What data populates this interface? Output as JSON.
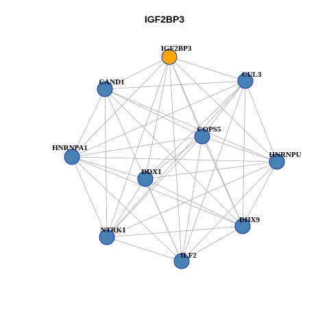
{
  "title": "IGF2BP3",
  "colors": {
    "focus_node": "#ffa500",
    "node": "#4682b4",
    "node_border": "#1c2fb0",
    "edge": "#aaaaaa"
  },
  "nodes": [
    {
      "id": "IGF2BP3",
      "label": "IGF2BP3",
      "focus": true
    },
    {
      "id": "CUL3",
      "label": "CUL3"
    },
    {
      "id": "CAND1",
      "label": "CAND1"
    },
    {
      "id": "COPS5",
      "label": "COPS5"
    },
    {
      "id": "HNRNPA1",
      "label": "HNRNPA1"
    },
    {
      "id": "HNRNPU",
      "label": "HNRNPU"
    },
    {
      "id": "DDX1",
      "label": "DDX1"
    },
    {
      "id": "DHX9",
      "label": "DHX9"
    },
    {
      "id": "NTRK1",
      "label": "NTRK1"
    },
    {
      "id": "ILF2",
      "label": "ILF2"
    }
  ],
  "edges": [
    [
      "IGF2BP3",
      "CAND1"
    ],
    [
      "IGF2BP3",
      "CUL3"
    ],
    [
      "IGF2BP3",
      "COPS5"
    ],
    [
      "IGF2BP3",
      "HNRNPA1"
    ],
    [
      "IGF2BP3",
      "HNRNPU"
    ],
    [
      "IGF2BP3",
      "DDX1"
    ],
    [
      "IGF2BP3",
      "DHX9"
    ],
    [
      "IGF2BP3",
      "NTRK1"
    ],
    [
      "IGF2BP3",
      "ILF2"
    ],
    [
      "CAND1",
      "CUL3"
    ],
    [
      "CAND1",
      "COPS5"
    ],
    [
      "CAND1",
      "HNRNPA1"
    ],
    [
      "CAND1",
      "HNRNPU"
    ],
    [
      "CAND1",
      "DHX9"
    ],
    [
      "CAND1",
      "NTRK1"
    ],
    [
      "CAND1",
      "ILF2"
    ],
    [
      "CUL3",
      "COPS5"
    ],
    [
      "CUL3",
      "HNRNPU"
    ],
    [
      "CUL3",
      "DDX1"
    ],
    [
      "CUL3",
      "DHX9"
    ],
    [
      "CUL3",
      "NTRK1"
    ],
    [
      "CUL3",
      "ILF2"
    ],
    [
      "CUL3",
      "HNRNPA1"
    ],
    [
      "COPS5",
      "HNRNPA1"
    ],
    [
      "COPS5",
      "HNRNPU"
    ],
    [
      "COPS5",
      "DDX1"
    ],
    [
      "COPS5",
      "NTRK1"
    ],
    [
      "COPS5",
      "ILF2"
    ],
    [
      "COPS5",
      "DHX9"
    ],
    [
      "HNRNPA1",
      "HNRNPU"
    ],
    [
      "HNRNPA1",
      "DDX1"
    ],
    [
      "HNRNPA1",
      "DHX9"
    ],
    [
      "HNRNPA1",
      "NTRK1"
    ],
    [
      "HNRNPA1",
      "ILF2"
    ],
    [
      "HNRNPU",
      "DDX1"
    ],
    [
      "HNRNPU",
      "DHX9"
    ],
    [
      "HNRNPU",
      "NTRK1"
    ],
    [
      "HNRNPU",
      "ILF2"
    ],
    [
      "DDX1",
      "DHX9"
    ],
    [
      "DDX1",
      "NTRK1"
    ],
    [
      "DDX1",
      "ILF2"
    ],
    [
      "DHX9",
      "NTRK1"
    ],
    [
      "DHX9",
      "ILF2"
    ],
    [
      "NTRK1",
      "ILF2"
    ]
  ]
}
